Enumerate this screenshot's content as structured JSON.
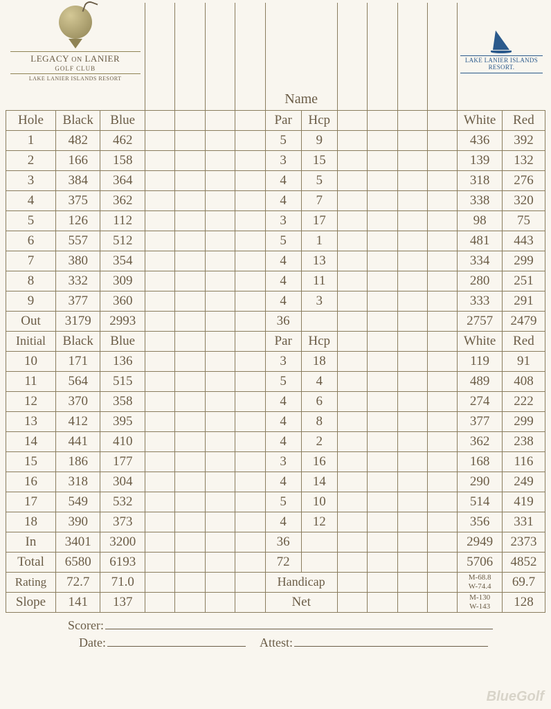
{
  "logo": {
    "title_a": "LEGACY",
    "title_on": "ON",
    "title_b": "LANIER",
    "sub": "GOLF CLUB",
    "sub2": "LAKE LANIER ISLANDS RESORT"
  },
  "resort": {
    "line1": "LAKE LANIER ISLANDS",
    "line2": "RESORT."
  },
  "headers": {
    "name": "Name",
    "hole": "Hole",
    "black": "Black",
    "blue": "Blue",
    "par": "Par",
    "hcp": "Hcp",
    "white": "White",
    "red": "Red",
    "initial": "Initial",
    "out": "Out",
    "in": "In",
    "total": "Total",
    "rating": "Rating",
    "slope": "Slope",
    "handicap": "Handicap",
    "net": "Net"
  },
  "front9": [
    {
      "hole": "1",
      "black": "482",
      "blue": "462",
      "par": "5",
      "hcp": "9",
      "white": "436",
      "red": "392"
    },
    {
      "hole": "2",
      "black": "166",
      "blue": "158",
      "par": "3",
      "hcp": "15",
      "white": "139",
      "red": "132"
    },
    {
      "hole": "3",
      "black": "384",
      "blue": "364",
      "par": "4",
      "hcp": "5",
      "white": "318",
      "red": "276"
    },
    {
      "hole": "4",
      "black": "375",
      "blue": "362",
      "par": "4",
      "hcp": "7",
      "white": "338",
      "red": "320"
    },
    {
      "hole": "5",
      "black": "126",
      "blue": "112",
      "par": "3",
      "hcp": "17",
      "white": "98",
      "red": "75"
    },
    {
      "hole": "6",
      "black": "557",
      "blue": "512",
      "par": "5",
      "hcp": "1",
      "white": "481",
      "red": "443"
    },
    {
      "hole": "7",
      "black": "380",
      "blue": "354",
      "par": "4",
      "hcp": "13",
      "white": "334",
      "red": "299"
    },
    {
      "hole": "8",
      "black": "332",
      "blue": "309",
      "par": "4",
      "hcp": "11",
      "white": "280",
      "red": "251"
    },
    {
      "hole": "9",
      "black": "377",
      "blue": "360",
      "par": "4",
      "hcp": "3",
      "white": "333",
      "red": "291"
    }
  ],
  "out_totals": {
    "black": "3179",
    "blue": "2993",
    "par": "36",
    "white": "2757",
    "red": "2479"
  },
  "back9": [
    {
      "hole": "10",
      "black": "171",
      "blue": "136",
      "par": "3",
      "hcp": "18",
      "white": "119",
      "red": "91"
    },
    {
      "hole": "11",
      "black": "564",
      "blue": "515",
      "par": "5",
      "hcp": "4",
      "white": "489",
      "red": "408"
    },
    {
      "hole": "12",
      "black": "370",
      "blue": "358",
      "par": "4",
      "hcp": "6",
      "white": "274",
      "red": "222"
    },
    {
      "hole": "13",
      "black": "412",
      "blue": "395",
      "par": "4",
      "hcp": "8",
      "white": "377",
      "red": "299"
    },
    {
      "hole": "14",
      "black": "441",
      "blue": "410",
      "par": "4",
      "hcp": "2",
      "white": "362",
      "red": "238"
    },
    {
      "hole": "15",
      "black": "186",
      "blue": "177",
      "par": "3",
      "hcp": "16",
      "white": "168",
      "red": "116"
    },
    {
      "hole": "16",
      "black": "318",
      "blue": "304",
      "par": "4",
      "hcp": "14",
      "white": "290",
      "red": "249"
    },
    {
      "hole": "17",
      "black": "549",
      "blue": "532",
      "par": "5",
      "hcp": "10",
      "white": "514",
      "red": "419"
    },
    {
      "hole": "18",
      "black": "390",
      "blue": "373",
      "par": "4",
      "hcp": "12",
      "white": "356",
      "red": "331"
    }
  ],
  "in_totals": {
    "black": "3401",
    "blue": "3200",
    "par": "36",
    "white": "2949",
    "red": "2373"
  },
  "total": {
    "black": "6580",
    "blue": "6193",
    "par": "72",
    "white": "5706",
    "red": "4852"
  },
  "rating": {
    "black": "72.7",
    "blue": "71.0",
    "white_m": "M-68.8",
    "white_w": "W-74.4",
    "red": "69.7"
  },
  "slope": {
    "black": "141",
    "blue": "137",
    "white_m": "M-130",
    "white_w": "W-143",
    "red": "128"
  },
  "footer": {
    "scorer": "Scorer:",
    "date": "Date:",
    "attest": "Attest:"
  },
  "watermark": "BlueGolf",
  "colors": {
    "text": "#6b5d47",
    "border": "#8a7d5e",
    "background": "#f9f6ef",
    "resort_blue": "#2b5a8c"
  }
}
